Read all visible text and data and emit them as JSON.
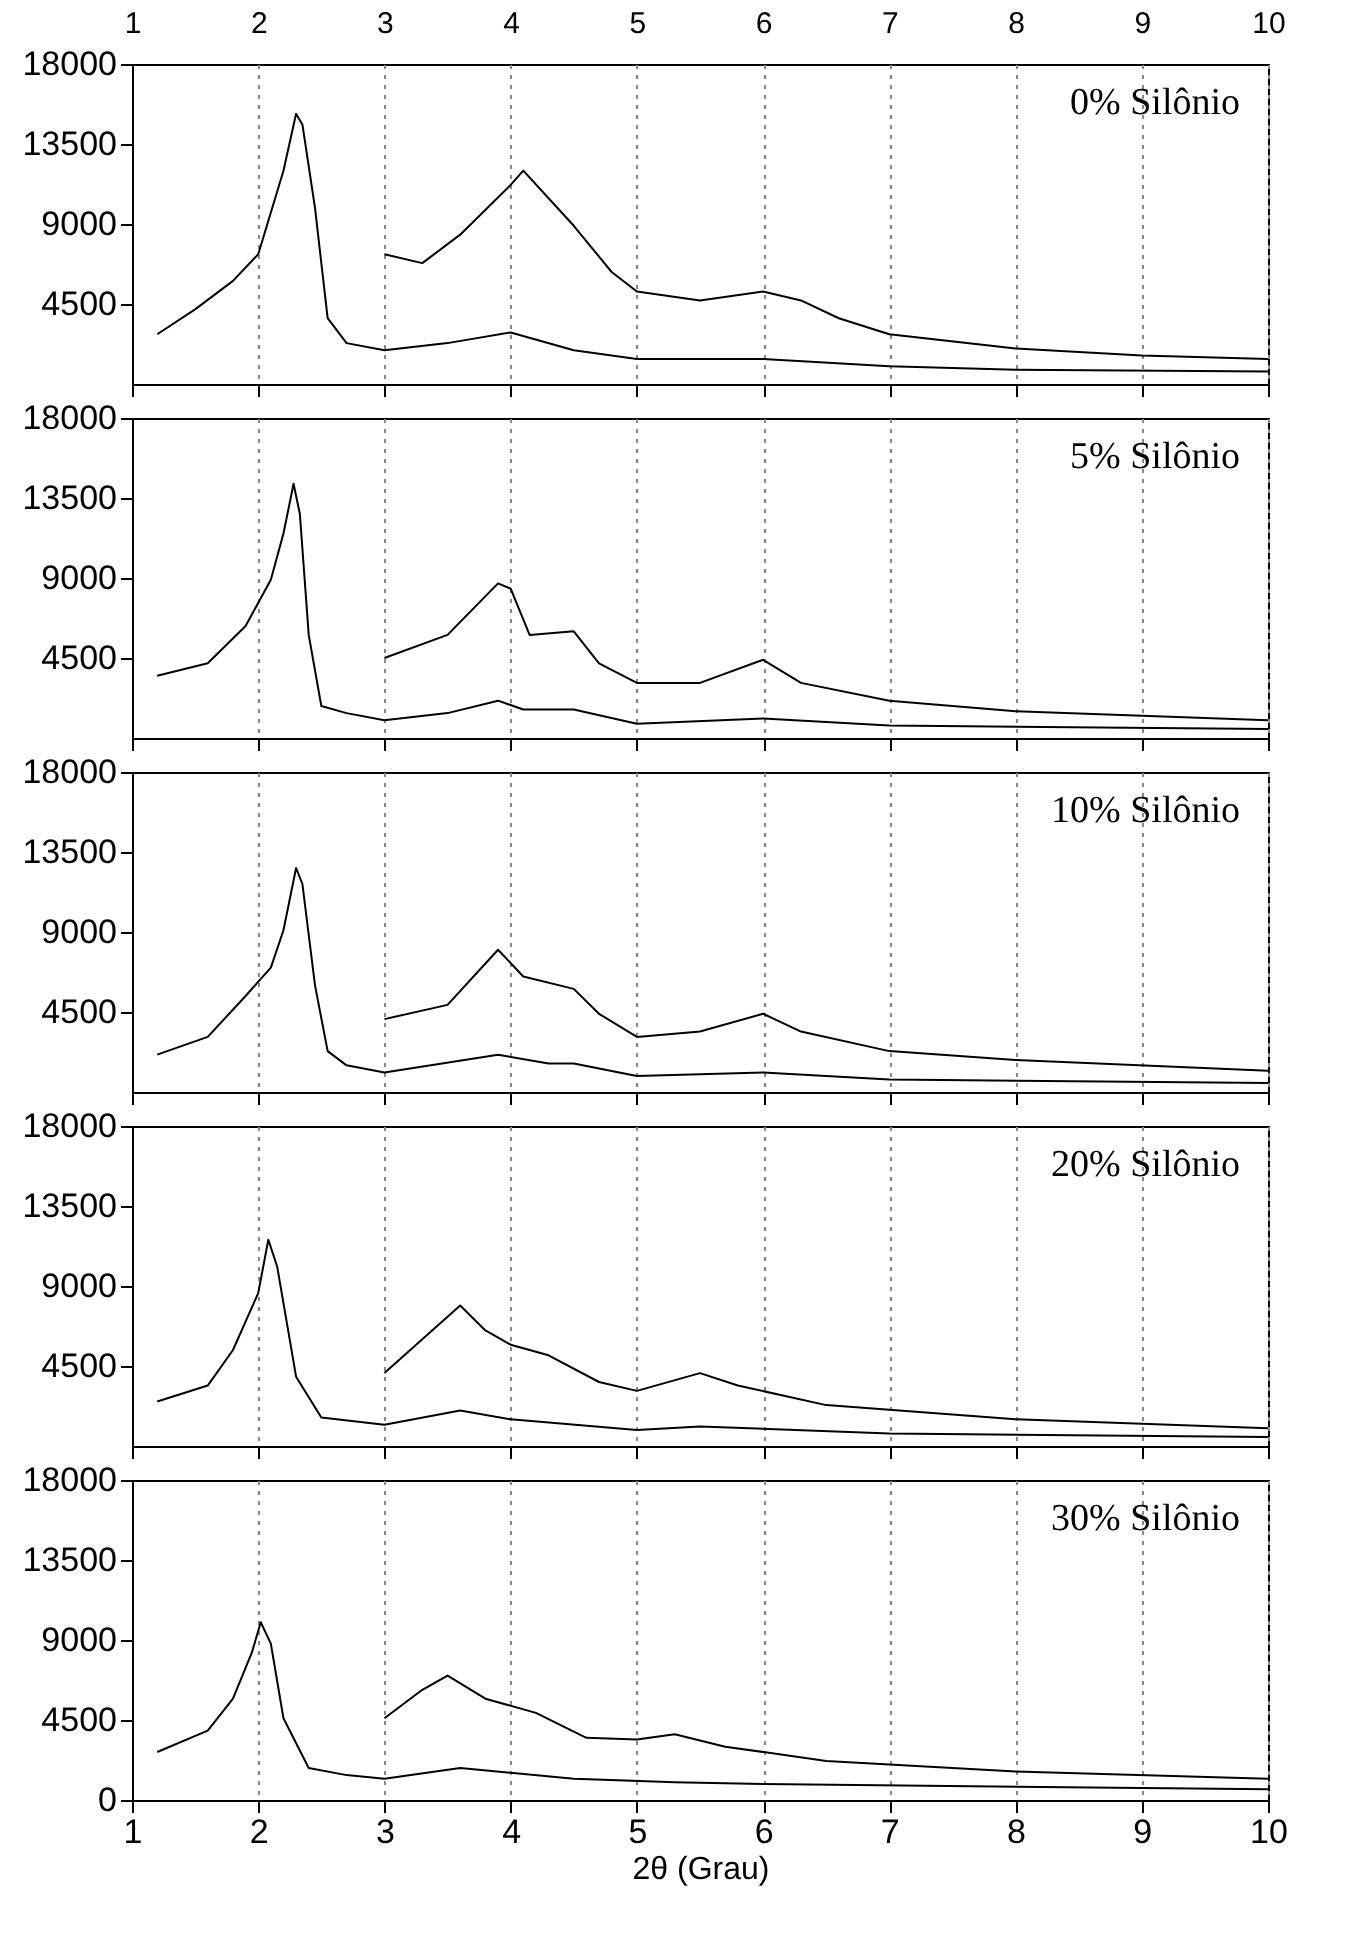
{
  "chart_data": [
    {
      "type": "line",
      "annotations": [
        "0% Silônio"
      ],
      "xlim": [
        1,
        10
      ],
      "xticks": [
        1,
        2,
        3,
        4,
        5,
        6,
        7,
        8,
        9,
        10
      ],
      "x2lim": [
        1,
        10
      ],
      "x2ticks": [
        1,
        2,
        3,
        4,
        5,
        6,
        7,
        8,
        9,
        10
      ],
      "ylim": [
        0,
        18000
      ],
      "yticks": [
        4500,
        9000,
        13500,
        18000
      ],
      "grid": "x",
      "tick_labels": "y",
      "series": [
        {
          "color": "#000000",
          "x": [
            1.2,
            1.5,
            1.8,
            2.0,
            2.2,
            2.3,
            2.35,
            2.45,
            2.55,
            2.7,
            3,
            3.5,
            4.0,
            4.5,
            5,
            6,
            7,
            8,
            10
          ],
          "values": [
            2800,
            4200,
            5800,
            7300,
            12000,
            15200,
            14600,
            9900,
            3700,
            2300,
            1900,
            2300,
            2900,
            1900,
            1400,
            1400,
            1000,
            800,
            700
          ]
        },
        {
          "color": "#000000",
          "x": [
            3,
            3.3,
            3.6,
            4.0,
            4.1,
            4.5,
            4.8,
            5.0,
            5.5,
            6.0,
            6.3,
            6.6,
            7,
            8,
            9,
            10
          ],
          "values": [
            7300,
            6800,
            8400,
            11200,
            12000,
            8900,
            6300,
            5200,
            4700,
            5200,
            4700,
            3700,
            2800,
            2000,
            1600,
            1400
          ]
        }
      ]
    },
    {
      "type": "line",
      "annotations": [
        "5% Silônio"
      ],
      "xlim": [
        1,
        10
      ],
      "xticks": [
        1,
        2,
        3,
        4,
        5,
        6,
        7,
        8,
        9,
        10
      ],
      "ylim": [
        0,
        18000
      ],
      "yticks": [
        4500,
        9000,
        13500,
        18000
      ],
      "grid": "x",
      "tick_labels": "y",
      "series": [
        {
          "color": "#000000",
          "x": [
            1.2,
            1.6,
            1.9,
            2.1,
            2.2,
            2.28,
            2.33,
            2.4,
            2.5,
            2.7,
            3,
            3.5,
            3.9,
            4.1,
            4.5,
            5,
            6,
            7,
            10
          ],
          "values": [
            3500,
            4200,
            6300,
            8900,
            11500,
            14300,
            12600,
            5800,
            1800,
            1400,
            1000,
            1400,
            2100,
            1600,
            1600,
            800,
            1100,
            700,
            500
          ]
        },
        {
          "color": "#000000",
          "x": [
            3,
            3.5,
            3.9,
            4.0,
            4.15,
            4.5,
            4.7,
            5.0,
            5.5,
            6.0,
            6.3,
            7,
            8,
            10
          ],
          "values": [
            4500,
            5800,
            8700,
            8400,
            5800,
            6000,
            4200,
            3100,
            3100,
            4400,
            3100,
            2100,
            1500,
            1000
          ]
        }
      ]
    },
    {
      "type": "line",
      "annotations": [
        "10% Silônio"
      ],
      "xlim": [
        1,
        10
      ],
      "xticks": [
        1,
        2,
        3,
        4,
        5,
        6,
        7,
        8,
        9,
        10
      ],
      "ylim": [
        0,
        18000
      ],
      "yticks": [
        4500,
        9000,
        13500,
        18000
      ],
      "grid": "x",
      "tick_labels": "y",
      "series": [
        {
          "color": "#000000",
          "x": [
            1.2,
            1.6,
            1.9,
            2.1,
            2.2,
            2.3,
            2.35,
            2.45,
            2.55,
            2.7,
            3,
            3.9,
            4.3,
            4.5,
            5,
            6,
            7,
            10
          ],
          "values": [
            2100,
            3100,
            5400,
            7000,
            9100,
            12600,
            11700,
            6000,
            2300,
            1500,
            1100,
            2100,
            1600,
            1600,
            900,
            1100,
            700,
            500
          ]
        },
        {
          "color": "#000000",
          "x": [
            3,
            3.5,
            3.9,
            4.1,
            4.5,
            4.7,
            5,
            5.5,
            6,
            6.3,
            7,
            8,
            10
          ],
          "values": [
            4100,
            4900,
            8000,
            6500,
            5800,
            4400,
            3100,
            3400,
            4400,
            3400,
            2300,
            1800,
            1200
          ]
        }
      ]
    },
    {
      "type": "line",
      "annotations": [
        "20% Silônio"
      ],
      "xlim": [
        1,
        10
      ],
      "xticks": [
        1,
        2,
        3,
        4,
        5,
        6,
        7,
        8,
        9,
        10
      ],
      "ylim": [
        0,
        18000
      ],
      "yticks": [
        4500,
        9000,
        13500,
        18000
      ],
      "grid": "x",
      "tick_labels": "y",
      "series": [
        {
          "color": "#000000",
          "x": [
            1.2,
            1.6,
            1.8,
            2.0,
            2.08,
            2.15,
            2.3,
            2.5,
            3,
            3.6,
            4,
            5,
            5.5,
            7,
            10
          ],
          "values": [
            2500,
            3400,
            5400,
            8600,
            11600,
            10100,
            3900,
            1600,
            1200,
            2000,
            1500,
            900,
            1100,
            700,
            500
          ]
        },
        {
          "color": "#000000",
          "x": [
            3,
            3.3,
            3.6,
            3.8,
            4.0,
            4.3,
            4.7,
            5.0,
            5.5,
            5.8,
            6.5,
            8,
            10
          ],
          "values": [
            4100,
            6000,
            7900,
            6500,
            5700,
            5100,
            3600,
            3100,
            4100,
            3400,
            2300,
            1500,
            1000
          ]
        }
      ]
    },
    {
      "type": "line",
      "annotations": [
        "30% Silônio"
      ],
      "xlabel": "2θ (Grau)",
      "xlim": [
        1,
        10
      ],
      "xticks": [
        1,
        2,
        3,
        4,
        5,
        6,
        7,
        8,
        9,
        10
      ],
      "ylim": [
        0,
        18000
      ],
      "yticks": [
        0,
        4500,
        9000,
        13500,
        18000
      ],
      "grid": "x",
      "series": [
        {
          "color": "#000000",
          "x": [
            1.2,
            1.6,
            1.8,
            1.95,
            2.02,
            2.1,
            2.2,
            2.4,
            2.7,
            3,
            3.6,
            4.5,
            5.3,
            6,
            10
          ],
          "values": [
            2700,
            3900,
            5700,
            8300,
            10000,
            8800,
            4600,
            1800,
            1400,
            1200,
            1800,
            1200,
            1000,
            900,
            600
          ]
        },
        {
          "color": "#000000",
          "x": [
            3,
            3.3,
            3.5,
            3.8,
            4.2,
            4.6,
            5.0,
            5.3,
            5.7,
            6.5,
            8,
            10
          ],
          "values": [
            4600,
            6200,
            7000,
            5700,
            4900,
            3500,
            3400,
            3700,
            3000,
            2200,
            1600,
            1200
          ]
        }
      ]
    }
  ]
}
